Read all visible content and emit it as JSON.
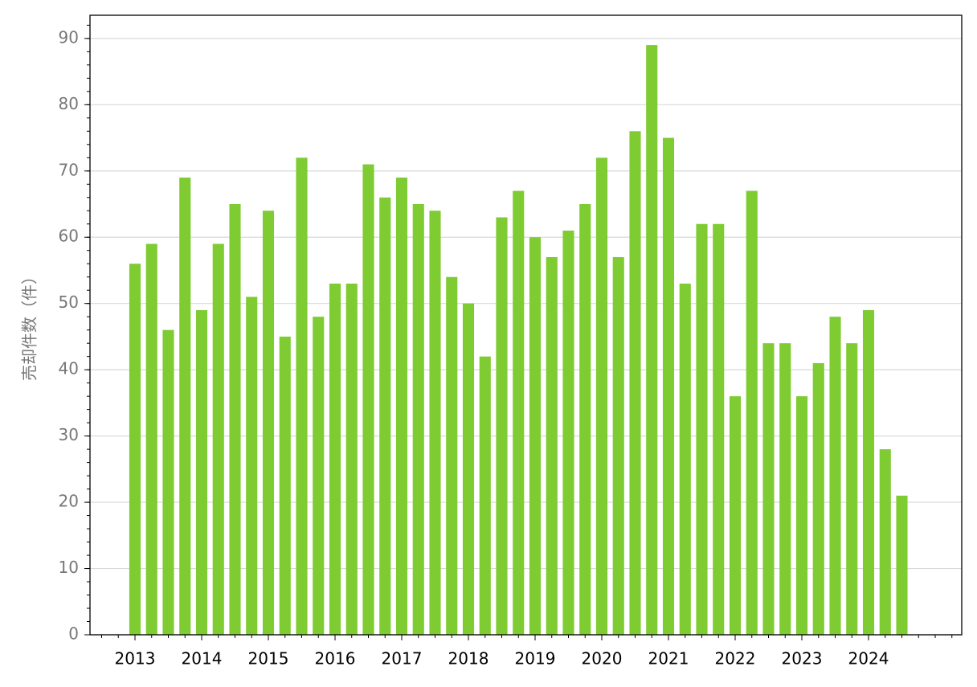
{
  "chart_data": {
    "type": "bar",
    "y_label": "売却件数（件）",
    "categories": [
      "2013",
      null,
      null,
      null,
      "2014",
      null,
      null,
      null,
      "2015",
      null,
      null,
      null,
      "2016",
      null,
      null,
      null,
      "2017",
      null,
      null,
      null,
      "2018",
      null,
      null,
      null,
      "2019",
      null,
      null,
      null,
      "2020",
      null,
      null,
      null,
      "2021",
      null,
      null,
      null,
      "2022",
      null,
      null,
      null,
      "2023",
      null,
      null,
      null,
      "2024",
      null,
      null
    ],
    "values": [
      56,
      59,
      46,
      69,
      49,
      59,
      65,
      51,
      64,
      45,
      72,
      48,
      53,
      53,
      71,
      66,
      69,
      65,
      64,
      54,
      50,
      42,
      63,
      67,
      60,
      57,
      61,
      65,
      72,
      57,
      76,
      89,
      75,
      53,
      62,
      62,
      36,
      67,
      44,
      44,
      36,
      41,
      48,
      44,
      49,
      28,
      21
    ],
    "color": "#7ecb32",
    "ylim": [
      0,
      93.5
    ],
    "yticks": [
      0,
      10,
      20,
      30,
      40,
      50,
      60,
      70,
      80,
      90
    ],
    "grid": true
  }
}
